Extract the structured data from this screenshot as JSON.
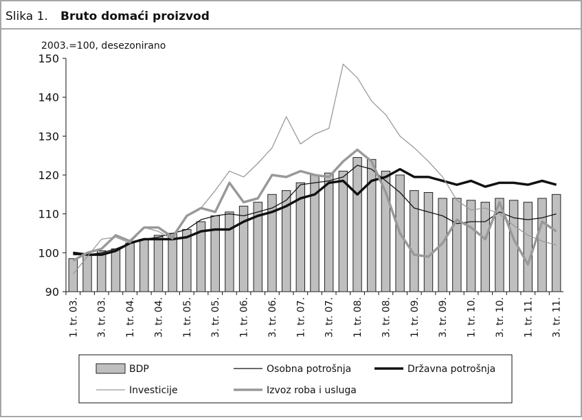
{
  "chart_data": {
    "type": "combo",
    "figure_label": "Slika 1.",
    "title": "Bruto domaći proizvod",
    "subtitle": "2003.=100, desezonirano",
    "categories": [
      "1. tr. 03.",
      null,
      "3. tr. 03.",
      null,
      "1. tr. 04.",
      null,
      "3. tr. 04.",
      null,
      "1. tr. 05.",
      null,
      "3. tr. 05.",
      null,
      "1. tr. 06.",
      null,
      "3. tr. 06.",
      null,
      "1. tr. 07.",
      null,
      "3. tr. 07.",
      null,
      "1. tr. 08.",
      null,
      "3. tr. 08.",
      null,
      "1. tr. 09.",
      null,
      "3. tr. 09.",
      null,
      "1. tr. 10.",
      null,
      "3. tr. 10.",
      null,
      "1. tr. 11.",
      null,
      "3. tr. 11."
    ],
    "ylim": [
      90,
      150
    ],
    "yticks": [
      90,
      100,
      110,
      120,
      130,
      140,
      150
    ],
    "grid": false,
    "series": [
      {
        "name": "BDP",
        "style": "bar",
        "color": "#bfbfbf",
        "values": [
          98.5,
          99.5,
          100.5,
          101,
          102.5,
          103.5,
          104.5,
          105,
          106,
          108,
          109.5,
          110.5,
          112,
          113,
          115,
          116,
          118,
          120,
          120.5,
          121,
          124.5,
          124,
          121,
          120,
          116,
          115.5,
          114,
          114,
          113.5,
          113,
          114,
          113.5,
          113,
          114,
          115
        ]
      },
      {
        "name": "Osobna potrošnja",
        "style": "line",
        "width": 1.3,
        "color": "#111111",
        "values": [
          99.5,
          99.5,
          100,
          101,
          102.5,
          103.5,
          104,
          105,
          106,
          108.5,
          109.5,
          110,
          109.5,
          110.5,
          111.5,
          113.5,
          117.5,
          118,
          118.5,
          119.5,
          122.5,
          121.5,
          118.5,
          115.5,
          111.5,
          110.5,
          109.5,
          107.5,
          108,
          108,
          110.5,
          109,
          108.5,
          109,
          110
        ]
      },
      {
        "name": "Državna potrošnja",
        "style": "line",
        "width": 3.5,
        "color": "#111111",
        "values": [
          100,
          99.5,
          99.5,
          100.5,
          102.5,
          103.5,
          103.5,
          103.5,
          104,
          105.5,
          106,
          106,
          108,
          109.5,
          110.5,
          112,
          114,
          115,
          118,
          118.5,
          115,
          118.5,
          119.5,
          121.5,
          119.5,
          119.5,
          118.5,
          117.5,
          118.5,
          117,
          118,
          118,
          117.5,
          118.5,
          117.5
        ]
      },
      {
        "name": "Investicije",
        "style": "line",
        "width": 1.3,
        "color": "#999999",
        "values": [
          94.5,
          99,
          103.5,
          104,
          102.5,
          106.5,
          105.5,
          103.5,
          109.5,
          111.5,
          116,
          121,
          119.5,
          123,
          127,
          135,
          128,
          130.5,
          132,
          148.5,
          145,
          139,
          135.5,
          130,
          127,
          123.5,
          119.5,
          113.5,
          111,
          111.5,
          110,
          107,
          104.5,
          103,
          102
        ]
      },
      {
        "name": "Izvoz roba i usluga",
        "style": "line",
        "width": 3.5,
        "color": "#999999",
        "values": [
          98,
          100,
          101,
          104.5,
          103,
          106.5,
          106.5,
          104,
          109.5,
          111.5,
          110.5,
          118,
          113,
          114,
          120,
          119.5,
          121,
          120,
          119.5,
          123.5,
          126.5,
          123.5,
          115.5,
          105,
          99.5,
          99,
          102.5,
          108.5,
          106.5,
          103.5,
          113,
          103.5,
          97,
          108,
          105.5
        ]
      }
    ]
  }
}
